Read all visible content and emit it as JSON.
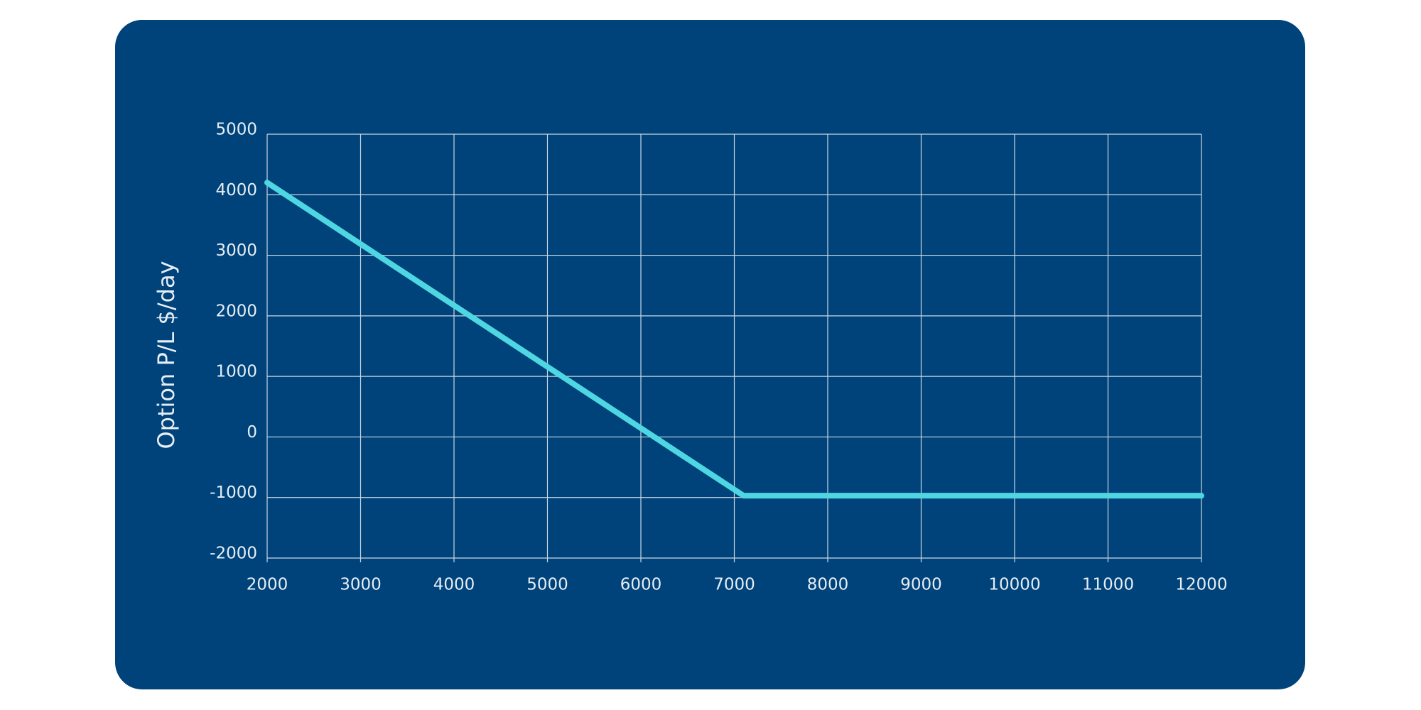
{
  "chart_data": {
    "type": "line",
    "y_label": "Option P/L $/day",
    "x": [
      2000,
      7100,
      12000
    ],
    "values": [
      4200,
      -970,
      -970
    ],
    "color": "#4fd6e3",
    "xlim": [
      2000,
      12000
    ],
    "xticks": [
      2000,
      3000,
      4000,
      5000,
      6000,
      7000,
      8000,
      9000,
      10000,
      11000,
      12000
    ],
    "ylim": [
      -2000,
      5000
    ],
    "yticks": [
      -2000,
      -1000,
      0,
      1000,
      2000,
      3000,
      4000,
      5000
    ],
    "grid": true
  }
}
